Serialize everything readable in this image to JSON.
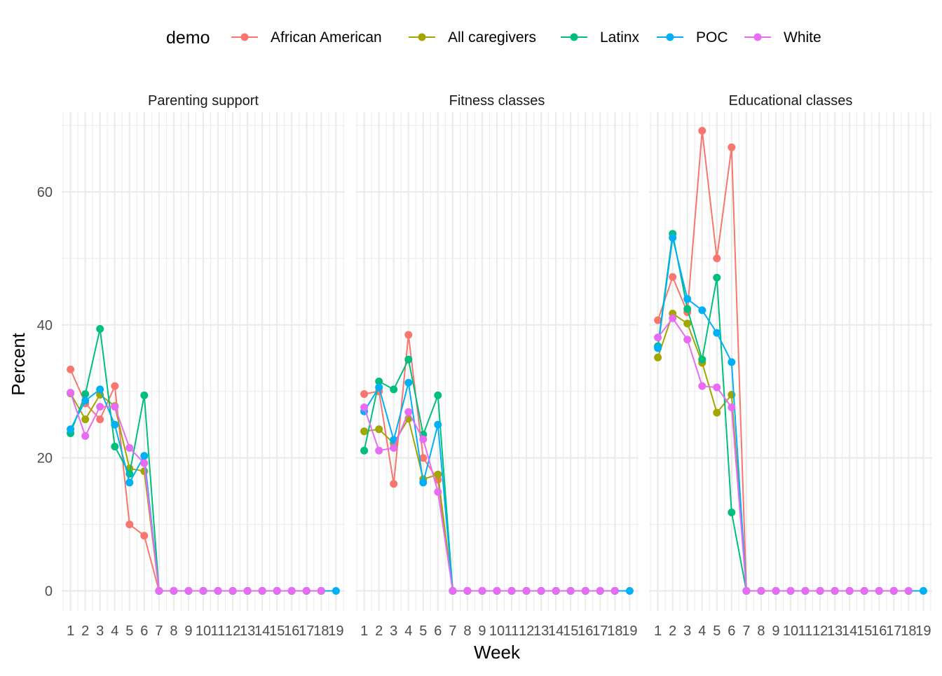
{
  "chart_data": {
    "type": "line",
    "facets": [
      "Parenting support",
      "Fitness classes",
      "Educational classes"
    ],
    "x": [
      1,
      2,
      3,
      4,
      5,
      6,
      7,
      8,
      9,
      10,
      11,
      12,
      13,
      14,
      15,
      16,
      17,
      18,
      19
    ],
    "xlabel": "Week",
    "ylabel": "Percent",
    "ylim": [
      -3,
      72
    ],
    "yticks": [
      0,
      20,
      40,
      60
    ],
    "legend_title": "demo",
    "legend_position": "top",
    "grid": true,
    "series": [
      {
        "name": "African American",
        "color": "#F8766D",
        "values": [
          [
            33.3,
            28.2,
            25.8,
            30.8,
            10.0,
            8.3,
            0,
            0,
            0,
            0,
            0,
            0,
            0,
            0,
            0,
            0,
            0,
            0,
            null
          ],
          [
            29.6,
            30.0,
            16.1,
            38.5,
            20.0,
            16.7,
            0,
            0,
            0,
            0,
            0,
            0,
            0,
            0,
            0,
            0,
            0,
            0,
            null
          ],
          [
            40.7,
            47.2,
            41.9,
            69.2,
            50.0,
            66.7,
            0,
            0,
            0,
            0,
            0,
            0,
            0,
            0,
            0,
            0,
            0,
            0,
            null
          ]
        ]
      },
      {
        "name": "All caregivers",
        "color": "#A3A500",
        "values": [
          [
            29.7,
            25.8,
            29.5,
            27.8,
            18.4,
            18.0,
            0,
            0,
            0,
            0,
            0,
            0,
            0,
            0,
            0,
            0,
            0,
            0,
            null
          ],
          [
            24.0,
            24.3,
            22.2,
            25.9,
            16.8,
            17.5,
            0,
            0,
            0,
            0,
            0,
            0,
            0,
            0,
            0,
            0,
            0,
            0,
            null
          ],
          [
            35.1,
            41.7,
            40.2,
            34.3,
            26.8,
            29.5,
            0,
            0,
            0,
            0,
            0,
            0,
            0,
            0,
            0,
            0,
            0,
            0,
            null
          ]
        ]
      },
      {
        "name": "Latinx",
        "color": "#00BF7D",
        "values": [
          [
            23.7,
            29.6,
            39.4,
            21.7,
            17.6,
            29.4,
            0,
            0,
            0,
            0,
            0,
            0,
            0,
            0,
            0,
            0,
            0,
            0,
            null
          ],
          [
            21.1,
            31.5,
            30.3,
            34.8,
            23.5,
            29.4,
            0,
            0,
            0,
            0,
            0,
            0,
            0,
            0,
            0,
            0,
            0,
            0,
            null
          ],
          [
            36.8,
            53.7,
            42.4,
            34.8,
            47.1,
            11.8,
            0,
            0,
            0,
            0,
            0,
            0,
            0,
            0,
            0,
            0,
            0,
            0,
            null
          ]
        ]
      },
      {
        "name": "POC",
        "color": "#00B0F6",
        "values": [
          [
            24.3,
            28.6,
            30.3,
            25.0,
            16.3,
            20.3,
            0,
            0,
            0,
            0,
            0,
            0,
            0,
            0,
            0,
            0,
            0,
            0,
            0
          ],
          [
            27.0,
            30.6,
            22.7,
            31.3,
            16.3,
            25.0,
            0,
            0,
            0,
            0,
            0,
            0,
            0,
            0,
            0,
            0,
            0,
            0,
            0
          ],
          [
            36.5,
            53.1,
            43.9,
            42.2,
            38.8,
            34.4,
            0,
            0,
            0,
            0,
            0,
            0,
            0,
            0,
            0,
            0,
            0,
            0,
            0
          ]
        ]
      },
      {
        "name": "White",
        "color": "#E76BF3",
        "values": [
          [
            29.8,
            23.3,
            27.7,
            27.7,
            21.5,
            19.2,
            0,
            0,
            0,
            0,
            0,
            0,
            0,
            0,
            0,
            0,
            0,
            0,
            null
          ],
          [
            27.6,
            21.1,
            21.5,
            26.9,
            22.8,
            14.9,
            0,
            0,
            0,
            0,
            0,
            0,
            0,
            0,
            0,
            0,
            0,
            0,
            null
          ],
          [
            38.1,
            41.0,
            37.8,
            30.8,
            30.6,
            27.6,
            0,
            0,
            0,
            0,
            0,
            0,
            0,
            0,
            0,
            0,
            0,
            0,
            null
          ]
        ]
      }
    ]
  }
}
